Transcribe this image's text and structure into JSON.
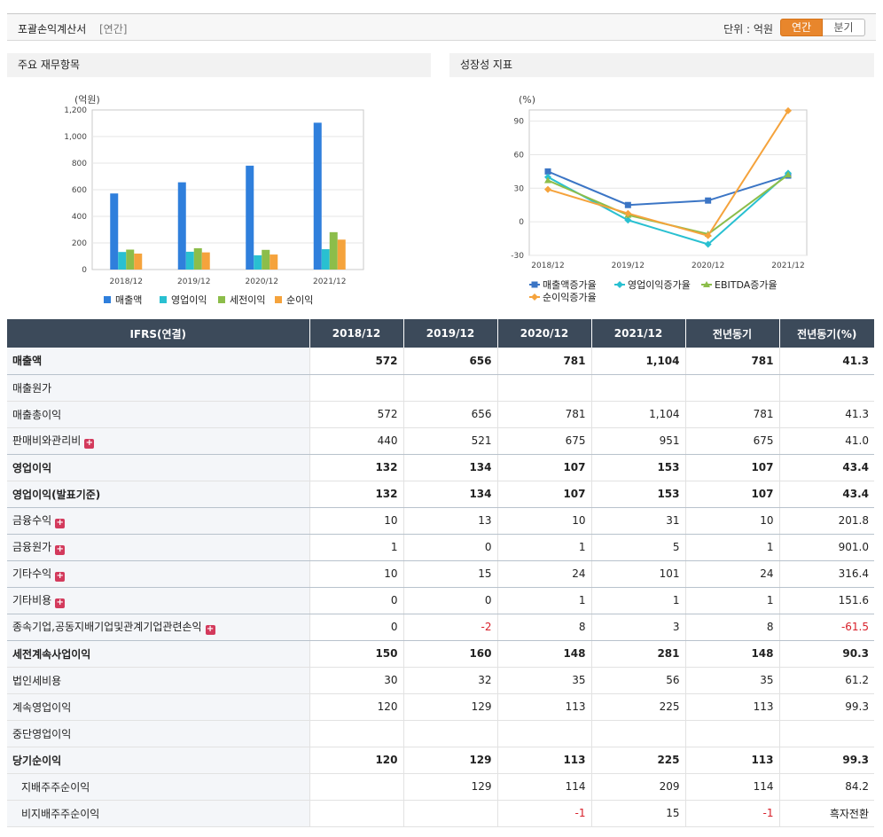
{
  "header": {
    "title": "포괄손익계산서",
    "sub": "[연간]",
    "unit": "단위 : 억원",
    "tab_annual": "연간",
    "tab_quarter": "분기"
  },
  "left_panel": {
    "title": "주요 재무항목",
    "unit_label": "(억원)"
  },
  "right_panel": {
    "title": "성장성 지표",
    "unit_label": "(%)"
  },
  "chart_data": [
    {
      "type": "bar",
      "categories": [
        "2018/12",
        "2019/12",
        "2020/12",
        "2021/12"
      ],
      "series": [
        {
          "name": "매출액",
          "values": [
            572,
            656,
            781,
            1104
          ],
          "color": "#2f7fdc"
        },
        {
          "name": "영업이익",
          "values": [
            132,
            134,
            107,
            153
          ],
          "color": "#29c0d1"
        },
        {
          "name": "세전이익",
          "values": [
            150,
            160,
            148,
            281
          ],
          "color": "#8cbd4a"
        },
        {
          "name": "순이익",
          "values": [
            120,
            129,
            113,
            225
          ],
          "color": "#f5a33c"
        }
      ],
      "ylim": [
        0,
        1200
      ],
      "yticks": [
        "0",
        "200",
        "400",
        "600",
        "800",
        "1,000",
        "1,200"
      ],
      "legend": "bottom"
    },
    {
      "type": "line",
      "categories": [
        "2018/12",
        "2019/12",
        "2020/12",
        "2021/12"
      ],
      "series": [
        {
          "name": "매출액증가율",
          "values": [
            45,
            15,
            19,
            41.3
          ],
          "color": "#3b75c5",
          "marker": "square"
        },
        {
          "name": "영업이익증가율",
          "values": [
            40,
            1.5,
            -20.1,
            43.4
          ],
          "color": "#29c0d1",
          "marker": "diamond"
        },
        {
          "name": "EBITDA증가율",
          "values": [
            37,
            6,
            -11,
            42
          ],
          "color": "#8cbd4a",
          "marker": "triangle"
        },
        {
          "name": "순이익증가율",
          "values": [
            29,
            7.5,
            -12.4,
            99.3
          ],
          "color": "#f5a33c",
          "marker": "diamond"
        }
      ],
      "ylim": [
        -30,
        100
      ],
      "yticks": [
        "-30",
        "0",
        "30",
        "60",
        "90"
      ],
      "legend": "bottom"
    }
  ],
  "table": {
    "headers": [
      "IFRS(연결)",
      "2018/12",
      "2019/12",
      "2020/12",
      "2021/12",
      "전년동기",
      "전년동기(%)"
    ],
    "rows": [
      {
        "label": "매출액",
        "bold": true,
        "dark": true,
        "plus": false,
        "sub": false,
        "cells": [
          "572",
          "656",
          "781",
          "1,104",
          "781",
          "41.3"
        ]
      },
      {
        "label": "매출원가",
        "bold": false,
        "dark": false,
        "plus": false,
        "sub": false,
        "cells": [
          "",
          "",
          "",
          "",
          "",
          ""
        ]
      },
      {
        "label": "매출총이익",
        "bold": false,
        "dark": false,
        "plus": false,
        "sub": false,
        "cells": [
          "572",
          "656",
          "781",
          "1,104",
          "781",
          "41.3"
        ]
      },
      {
        "label": "판매비와관리비",
        "bold": false,
        "dark": true,
        "plus": true,
        "sub": false,
        "cells": [
          "440",
          "521",
          "675",
          "951",
          "675",
          "41.0"
        ]
      },
      {
        "label": "영업이익",
        "bold": true,
        "dark": false,
        "plus": false,
        "sub": false,
        "cells": [
          "132",
          "134",
          "107",
          "153",
          "107",
          "43.4"
        ]
      },
      {
        "label": "영업이익(발표기준)",
        "bold": true,
        "dark": true,
        "plus": false,
        "sub": false,
        "cells": [
          "132",
          "134",
          "107",
          "153",
          "107",
          "43.4"
        ]
      },
      {
        "label": "금융수익",
        "bold": false,
        "dark": true,
        "plus": true,
        "sub": false,
        "cells": [
          "10",
          "13",
          "10",
          "31",
          "10",
          "201.8"
        ]
      },
      {
        "label": "금융원가",
        "bold": false,
        "dark": true,
        "plus": true,
        "sub": false,
        "cells": [
          "1",
          "0",
          "1",
          "5",
          "1",
          "901.0"
        ]
      },
      {
        "label": "기타수익",
        "bold": false,
        "dark": true,
        "plus": true,
        "sub": false,
        "cells": [
          "10",
          "15",
          "24",
          "101",
          "24",
          "316.4"
        ]
      },
      {
        "label": "기타비용",
        "bold": false,
        "dark": true,
        "plus": true,
        "sub": false,
        "cells": [
          "0",
          "0",
          "1",
          "1",
          "1",
          "151.6"
        ]
      },
      {
        "label": "종속기업,공동지배기업및관계기업관련손익",
        "bold": false,
        "dark": true,
        "plus": true,
        "sub": false,
        "cells": [
          "0",
          "-2",
          "8",
          "3",
          "8",
          "-61.5"
        ]
      },
      {
        "label": "세전계속사업이익",
        "bold": true,
        "dark": false,
        "plus": false,
        "sub": false,
        "cells": [
          "150",
          "160",
          "148",
          "281",
          "148",
          "90.3"
        ]
      },
      {
        "label": "법인세비용",
        "bold": false,
        "dark": false,
        "plus": false,
        "sub": false,
        "cells": [
          "30",
          "32",
          "35",
          "56",
          "35",
          "61.2"
        ]
      },
      {
        "label": "계속영업이익",
        "bold": false,
        "dark": false,
        "plus": false,
        "sub": false,
        "cells": [
          "120",
          "129",
          "113",
          "225",
          "113",
          "99.3"
        ]
      },
      {
        "label": "중단영업이익",
        "bold": false,
        "dark": false,
        "plus": false,
        "sub": false,
        "cells": [
          "",
          "",
          "",
          "",
          "",
          ""
        ]
      },
      {
        "label": "당기순이익",
        "bold": true,
        "dark": false,
        "plus": false,
        "sub": false,
        "cells": [
          "120",
          "129",
          "113",
          "225",
          "113",
          "99.3"
        ]
      },
      {
        "label": "지배주주순이익",
        "bold": false,
        "dark": false,
        "plus": false,
        "sub": true,
        "cells": [
          "",
          "129",
          "114",
          "209",
          "114",
          "84.2"
        ]
      },
      {
        "label": "비지배주주순이익",
        "bold": false,
        "dark": false,
        "plus": false,
        "sub": true,
        "cells": [
          "",
          "",
          "-1",
          "15",
          "-1",
          "흑자전환"
        ]
      }
    ]
  }
}
